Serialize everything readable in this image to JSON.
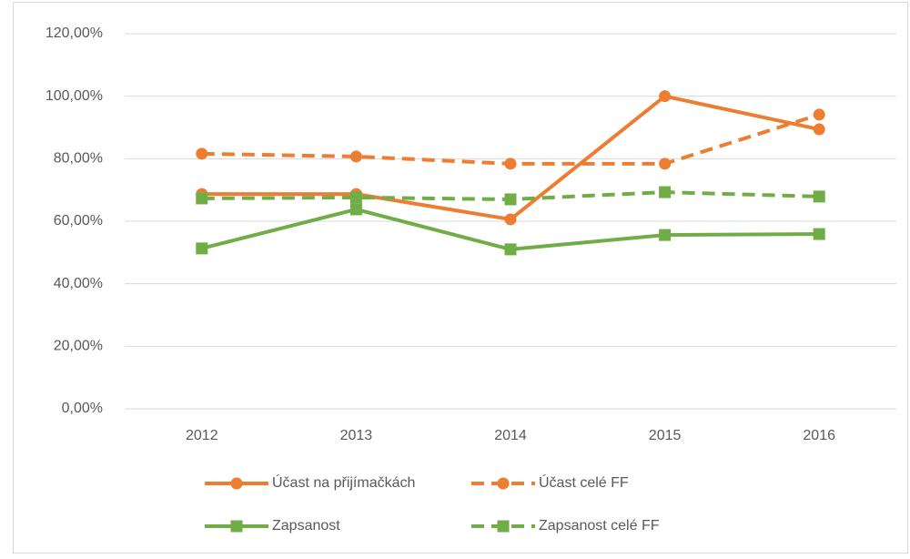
{
  "chart_data": {
    "type": "line",
    "categories": [
      "2012",
      "2013",
      "2014",
      "2015",
      "2016"
    ],
    "series": [
      {
        "name": "Účast na přijímačkách",
        "color": "#ed7d31",
        "dash": false,
        "marker": "circle",
        "values": [
          68.7,
          68.7,
          60.6,
          100,
          89.4
        ]
      },
      {
        "name": "Účast celé FF",
        "color": "#ed7d31",
        "dash": true,
        "marker": "circle",
        "values": [
          81.6,
          80.7,
          78.4,
          78.4,
          94.1
        ]
      },
      {
        "name": "Zapsanost",
        "color": "#70ad47",
        "dash": false,
        "marker": "square",
        "values": [
          51.3,
          63.8,
          51.0,
          55.6,
          55.9
        ]
      },
      {
        "name": "Zapsanost  celé FF",
        "color": "#70ad47",
        "dash": true,
        "marker": "square",
        "values": [
          67.3,
          67.6,
          67.0,
          69.3,
          67.9
        ]
      }
    ],
    "ylim": [
      0,
      120
    ],
    "yticks": [
      {
        "value": 0,
        "label": "0,00%"
      },
      {
        "value": 20,
        "label": "20,00%"
      },
      {
        "value": 40,
        "label": "40,00%"
      },
      {
        "value": 60,
        "label": "60,00%"
      },
      {
        "value": 80,
        "label": "80,00%"
      },
      {
        "value": 100,
        "label": "100,00%"
      },
      {
        "value": 120,
        "label": "120,00%"
      }
    ],
    "grid": true,
    "legend": "bottom"
  }
}
